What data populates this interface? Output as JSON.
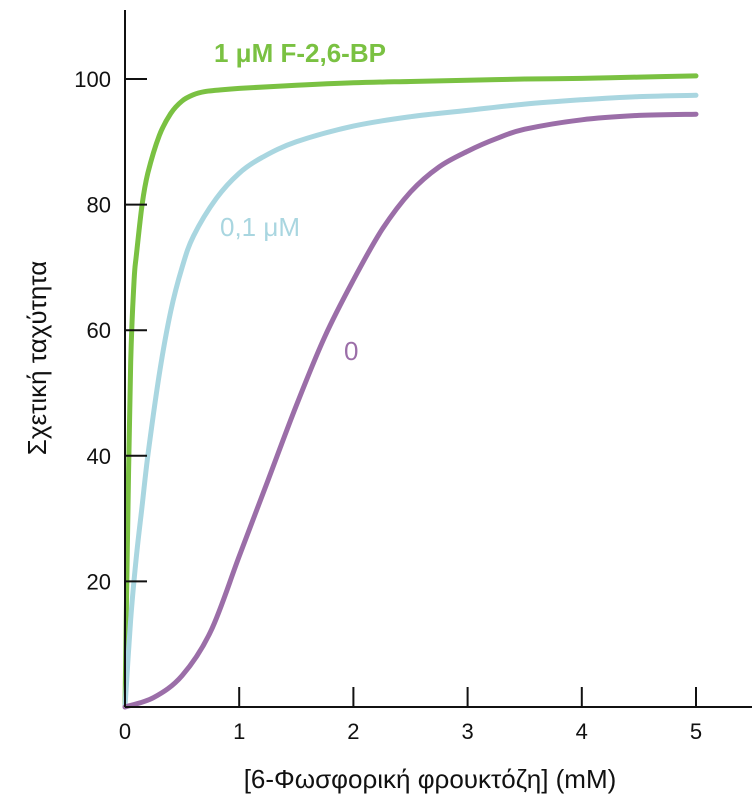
{
  "chart_data": {
    "type": "line",
    "xlabel": "[6-Φωσφορική φρουκτόζη] (mM)",
    "ylabel": "Σχετική ταχύτητα",
    "xlim": [
      0,
      5.5
    ],
    "ylim": [
      0,
      100
    ],
    "x_ticks": [
      "0",
      "1",
      "2",
      "3",
      "4",
      "5"
    ],
    "y_ticks": [
      "20",
      "40",
      "60",
      "80",
      "100"
    ],
    "grid": false,
    "series": [
      {
        "label": "1 μM F-2,6-BP",
        "color": "#7ac142",
        "bold": true,
        "x": [
          0,
          0.02,
          0.05,
          0.08,
          0.1,
          0.15,
          0.2,
          0.3,
          0.4,
          0.5,
          0.6,
          0.7,
          0.8,
          1.0,
          1.5,
          2.0,
          2.5,
          3.0,
          3.5,
          4.0,
          4.5,
          5.0
        ],
        "y": [
          0,
          25,
          55,
          68,
          72,
          80,
          85,
          91,
          94.5,
          96.5,
          97.5,
          98,
          98.2,
          98.5,
          99,
          99.4,
          99.6,
          99.8,
          100,
          100.1,
          100.3,
          100.5
        ]
      },
      {
        "label": "0,1 μM",
        "color": "#a9d6e0",
        "bold": false,
        "x": [
          0,
          0.05,
          0.1,
          0.15,
          0.2,
          0.3,
          0.4,
          0.5,
          0.6,
          0.8,
          1.0,
          1.2,
          1.5,
          2.0,
          2.5,
          3.0,
          3.5,
          4.0,
          4.5,
          5.0
        ],
        "y": [
          0,
          14,
          24,
          32,
          40,
          53,
          63,
          70,
          75,
          81,
          85,
          87.5,
          90,
          92.5,
          94,
          95,
          96,
          96.7,
          97.2,
          97.4
        ]
      },
      {
        "label": "0",
        "color": "#9b6ea8",
        "bold": false,
        "x": [
          0,
          0.25,
          0.5,
          0.75,
          1.0,
          1.25,
          1.5,
          1.75,
          2.0,
          2.25,
          2.5,
          2.75,
          3.0,
          3.25,
          3.5,
          4.0,
          4.5,
          5.0
        ],
        "y": [
          0,
          1.5,
          5,
          12,
          24,
          36,
          48,
          59,
          68,
          76,
          82,
          86,
          88.5,
          90.5,
          92,
          93.5,
          94.2,
          94.4
        ]
      }
    ]
  }
}
